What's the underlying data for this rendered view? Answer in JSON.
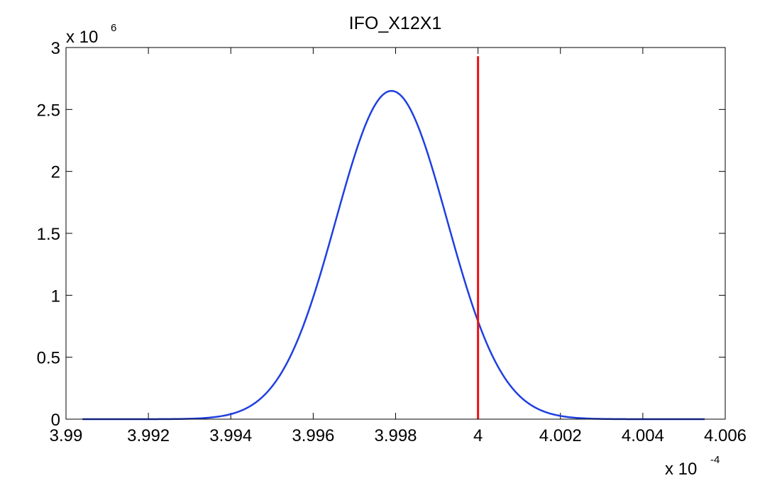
{
  "chart_data": {
    "type": "line",
    "title": "IFO_X12X1",
    "xlabel": "",
    "ylabel": "",
    "xlim": [
      3.99,
      4.006
    ],
    "ylim": [
      0,
      3
    ],
    "x_multiplier": {
      "base": "x 10",
      "exponent": "-4"
    },
    "y_multiplier": {
      "base": "x 10",
      "exponent": "6"
    },
    "x_ticks": [
      3.99,
      3.992,
      3.994,
      3.996,
      3.998,
      4,
      4.002,
      4.004,
      4.006
    ],
    "x_tick_labels": [
      "3.99",
      "3.992",
      "3.994",
      "3.996",
      "3.998",
      "4",
      "4.002",
      "4.004",
      "4.006"
    ],
    "y_ticks": [
      0,
      0.5,
      1,
      1.5,
      2,
      2.5,
      3
    ],
    "y_tick_labels": [
      "0",
      "0.5",
      "1",
      "1.5",
      "2",
      "2.5",
      "3"
    ],
    "grid": false,
    "series": [
      {
        "color": "#1f3fe0",
        "style": "gaussian curve",
        "x_range": [
          3.9904,
          4.0055
        ],
        "peak_x": 3.9979,
        "peak_y": 2.65,
        "std_dev": 0.00135,
        "sample_points": [
          {
            "x": 3.9904,
            "y": 0.0
          },
          {
            "x": 3.994,
            "y": 0.1
          },
          {
            "x": 3.9955,
            "y": 0.59
          },
          {
            "x": 3.9965,
            "y": 1.54
          },
          {
            "x": 3.9979,
            "y": 2.65
          },
          {
            "x": 3.999,
            "y": 2.1
          },
          {
            "x": 4.0,
            "y": 0.97
          },
          {
            "x": 4.002,
            "y": 0.06
          },
          {
            "x": 4.0055,
            "y": 0.0
          }
        ]
      },
      {
        "color": "#ee1111",
        "style": "vertical line",
        "x": 4.0,
        "y_range": [
          0,
          2.93
        ]
      }
    ]
  }
}
